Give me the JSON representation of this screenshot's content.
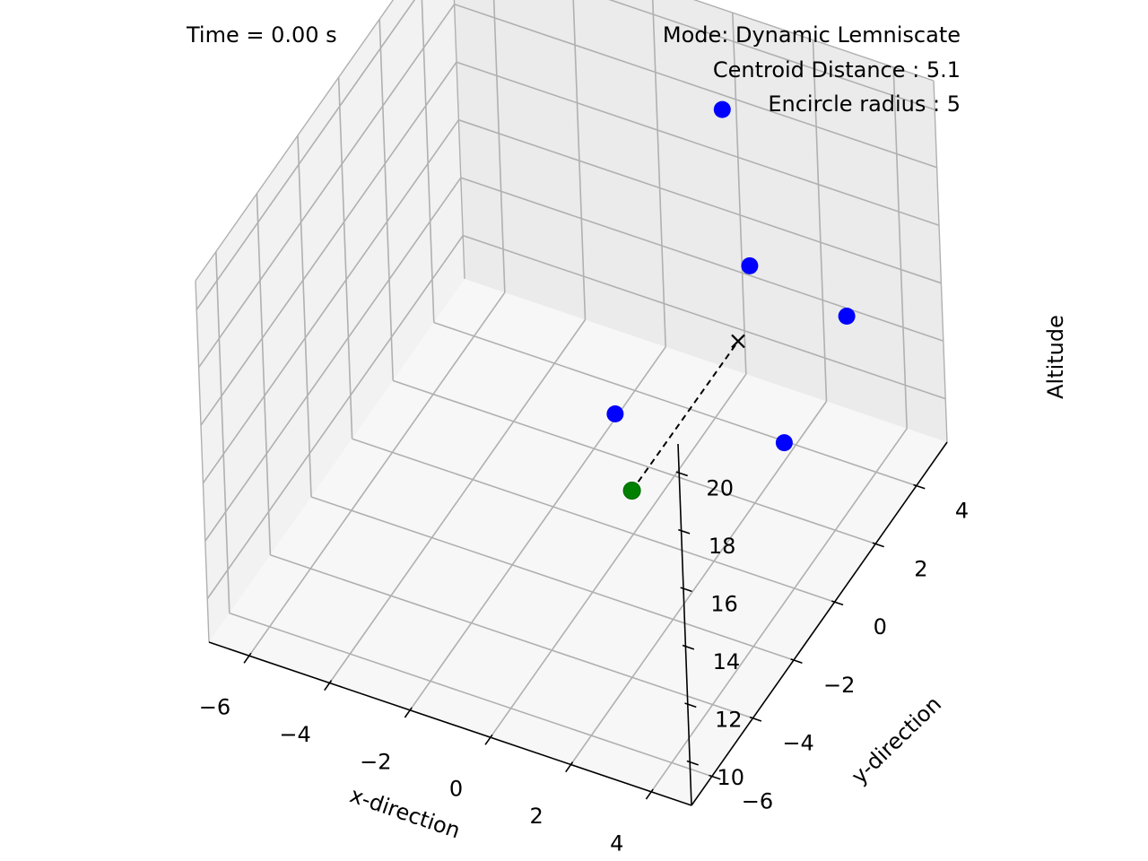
{
  "annotations": {
    "time_text": "Time = 0.00 s",
    "mode_text": "Mode: Dynamic Lemniscate",
    "centroid_text": "Centroid Distance : 5.1",
    "radius_text": "Encircle radius : 5"
  },
  "chart_data": {
    "type": "scatter",
    "projection": "3d",
    "title": "",
    "xlabel": "x-direction",
    "ylabel": "y-direction",
    "zlabel": "Altitude",
    "xlim": [
      -7,
      5
    ],
    "ylim": [
      -7,
      5.5
    ],
    "zlim": [
      8.5,
      21
    ],
    "x_ticks": [
      -6,
      -4,
      -2,
      0,
      2,
      4
    ],
    "y_ticks": [
      -6,
      -4,
      -2,
      0,
      2,
      4
    ],
    "z_ticks": [
      10,
      12,
      14,
      16,
      18,
      20
    ],
    "x_tick_labels": [
      "−6",
      "−4",
      "−2",
      "0",
      "2",
      "4"
    ],
    "y_tick_labels": [
      "−6",
      "−4",
      "−2",
      "0",
      "2",
      "4"
    ],
    "z_tick_labels": [
      "10",
      "12",
      "14",
      "16",
      "18",
      "20"
    ],
    "grid": true,
    "colors": {
      "agents": "#0000ff",
      "leader": "#008000",
      "centroid": "#000000",
      "pane_left": "#f2f2f2",
      "pane_back": "#ebebeb",
      "pane_floor": "#f7f7f7",
      "grid": "#b0b0b0"
    },
    "series": [
      {
        "marker": "circle",
        "color": "#0000ff",
        "points": [
          {
            "x": 0.3,
            "y": 4.3,
            "z": 19.0
          },
          {
            "x": 2.2,
            "y": 1.8,
            "z": 17.0
          },
          {
            "x": 4.0,
            "y": 2.9,
            "z": 15.0
          },
          {
            "x": 0.3,
            "y": -1.2,
            "z": 14.0
          },
          {
            "x": 3.5,
            "y": 0.7,
            "z": 12.6
          }
        ]
      },
      {
        "marker": "circle",
        "color": "#008000",
        "points": [
          {
            "x": 0.0,
            "y": 0.0,
            "z": 10.0
          }
        ]
      },
      {
        "marker": "x",
        "color": "#000000",
        "points": [
          {
            "x": 2.0,
            "y": 1.5,
            "z": 14.6
          }
        ]
      }
    ],
    "lines": [
      {
        "style": "dashed",
        "color": "#000000",
        "from": {
          "x": 0.0,
          "y": 0.0,
          "z": 10.0
        },
        "to": {
          "x": 2.0,
          "y": 1.5,
          "z": 14.6
        }
      }
    ]
  }
}
